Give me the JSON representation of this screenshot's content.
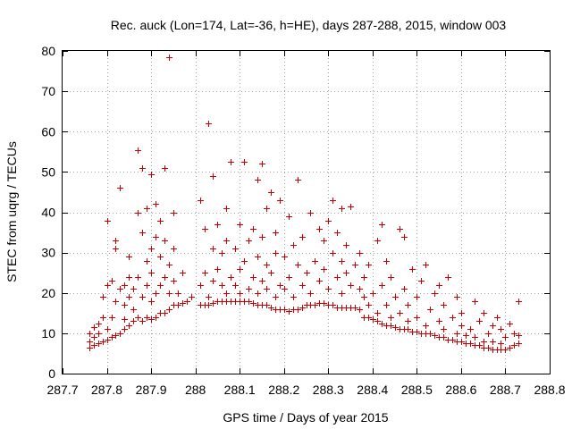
{
  "chart_data": {
    "type": "scatter",
    "title": "Rec. auck (Lon=174, Lat=-36, h=HE), days 287-288, 2015, window 003",
    "xlabel": "GPS time / Days of year 2015",
    "ylabel": "STEC from uqrg / TECUs",
    "xlim": [
      287.7,
      288.8
    ],
    "ylim": [
      0,
      80
    ],
    "x_ticks": [
      "287.7",
      "287.8",
      "287.9",
      "288",
      "288.1",
      "288.2",
      "288.3",
      "288.4",
      "288.5",
      "288.6",
      "288.7",
      "288.8"
    ],
    "y_ticks": [
      "0",
      "10",
      "20",
      "30",
      "40",
      "50",
      "60",
      "70",
      "80"
    ],
    "grid": true,
    "marker": "+",
    "colors": {
      "points": "#cc0000",
      "grid": "#a0a0a0",
      "axes": "#000000"
    },
    "series": [
      {
        "name": "STEC",
        "points": [
          [
            287.76,
            6.5
          ],
          [
            287.76,
            8
          ],
          [
            287.76,
            10
          ],
          [
            287.77,
            7
          ],
          [
            287.77,
            9
          ],
          [
            287.77,
            11.5
          ],
          [
            287.78,
            7.5
          ],
          [
            287.78,
            10
          ],
          [
            287.78,
            12.5
          ],
          [
            287.79,
            8
          ],
          [
            287.79,
            14
          ],
          [
            287.79,
            19
          ],
          [
            287.8,
            8.5
          ],
          [
            287.8,
            11
          ],
          [
            287.8,
            22
          ],
          [
            287.8,
            38
          ],
          [
            287.81,
            9
          ],
          [
            287.81,
            14
          ],
          [
            287.81,
            23
          ],
          [
            287.82,
            9.5
          ],
          [
            287.82,
            18
          ],
          [
            287.82,
            31
          ],
          [
            287.82,
            33
          ],
          [
            287.83,
            10
          ],
          [
            287.83,
            21
          ],
          [
            287.83,
            46
          ],
          [
            287.84,
            11
          ],
          [
            287.84,
            13.5
          ],
          [
            287.84,
            17
          ],
          [
            287.84,
            22
          ],
          [
            287.85,
            12
          ],
          [
            287.85,
            19
          ],
          [
            287.85,
            24
          ],
          [
            287.85,
            29
          ],
          [
            287.86,
            13
          ],
          [
            287.86,
            16
          ],
          [
            287.86,
            21
          ],
          [
            287.87,
            14
          ],
          [
            287.87,
            24
          ],
          [
            287.87,
            40
          ],
          [
            287.87,
            55.5
          ],
          [
            287.88,
            13
          ],
          [
            287.88,
            19
          ],
          [
            287.88,
            35
          ],
          [
            287.88,
            51
          ],
          [
            287.89,
            14
          ],
          [
            287.89,
            22
          ],
          [
            287.89,
            28
          ],
          [
            287.89,
            41
          ],
          [
            287.9,
            13.5
          ],
          [
            287.9,
            18
          ],
          [
            287.9,
            25
          ],
          [
            287.9,
            31
          ],
          [
            287.9,
            49.5
          ],
          [
            287.91,
            14
          ],
          [
            287.91,
            20
          ],
          [
            287.91,
            34
          ],
          [
            287.91,
            42
          ],
          [
            287.92,
            15
          ],
          [
            287.92,
            22
          ],
          [
            287.92,
            29
          ],
          [
            287.92,
            38
          ],
          [
            287.93,
            15
          ],
          [
            287.93,
            24
          ],
          [
            287.93,
            33
          ],
          [
            287.93,
            51
          ],
          [
            287.94,
            16
          ],
          [
            287.94,
            20
          ],
          [
            287.94,
            27
          ],
          [
            287.94,
            78.5
          ],
          [
            287.95,
            17
          ],
          [
            287.95,
            23
          ],
          [
            287.95,
            31
          ],
          [
            287.95,
            40
          ],
          [
            287.96,
            17
          ],
          [
            287.96,
            20
          ],
          [
            287.97,
            17.5
          ],
          [
            287.97,
            25
          ],
          [
            287.98,
            18
          ],
          [
            287.99,
            19
          ],
          [
            288.01,
            17
          ],
          [
            288.01,
            22
          ],
          [
            288.01,
            43
          ],
          [
            288.02,
            17
          ],
          [
            288.02,
            25
          ],
          [
            288.02,
            36
          ],
          [
            288.03,
            17
          ],
          [
            288.03,
            19
          ],
          [
            288.03,
            62
          ],
          [
            288.04,
            17.5
          ],
          [
            288.04,
            23
          ],
          [
            288.04,
            31
          ],
          [
            288.04,
            49
          ],
          [
            288.05,
            18
          ],
          [
            288.05,
            26
          ],
          [
            288.05,
            37
          ],
          [
            288.06,
            18
          ],
          [
            288.06,
            22
          ],
          [
            288.06,
            30
          ],
          [
            288.07,
            18
          ],
          [
            288.07,
            20
          ],
          [
            288.07,
            33
          ],
          [
            288.07,
            41
          ],
          [
            288.08,
            18
          ],
          [
            288.08,
            24
          ],
          [
            288.08,
            52.5
          ],
          [
            288.09,
            18
          ],
          [
            288.09,
            22
          ],
          [
            288.09,
            31
          ],
          [
            288.1,
            18
          ],
          [
            288.1,
            20
          ],
          [
            288.1,
            26
          ],
          [
            288.1,
            37
          ],
          [
            288.11,
            18
          ],
          [
            288.11,
            28
          ],
          [
            288.11,
            52.5
          ],
          [
            288.12,
            18
          ],
          [
            288.12,
            21
          ],
          [
            288.12,
            33
          ],
          [
            288.13,
            17.5
          ],
          [
            288.13,
            24
          ],
          [
            288.13,
            36
          ],
          [
            288.14,
            17
          ],
          [
            288.14,
            20
          ],
          [
            288.14,
            29
          ],
          [
            288.14,
            48
          ],
          [
            288.15,
            17
          ],
          [
            288.15,
            23
          ],
          [
            288.15,
            34
          ],
          [
            288.15,
            52
          ],
          [
            288.16,
            17
          ],
          [
            288.16,
            21
          ],
          [
            288.16,
            27
          ],
          [
            288.16,
            41
          ],
          [
            288.17,
            16.5
          ],
          [
            288.17,
            25
          ],
          [
            288.17,
            45
          ],
          [
            288.18,
            16
          ],
          [
            288.18,
            19
          ],
          [
            288.18,
            30
          ],
          [
            288.18,
            35
          ],
          [
            288.19,
            16
          ],
          [
            288.19,
            22
          ],
          [
            288.19,
            43
          ],
          [
            288.2,
            16
          ],
          [
            288.2,
            21
          ],
          [
            288.2,
            29
          ],
          [
            288.21,
            15.5
          ],
          [
            288.21,
            24
          ],
          [
            288.21,
            39
          ],
          [
            288.22,
            16
          ],
          [
            288.22,
            19
          ],
          [
            288.22,
            32
          ],
          [
            288.23,
            16
          ],
          [
            288.23,
            27
          ],
          [
            288.23,
            48
          ],
          [
            288.24,
            16.5
          ],
          [
            288.24,
            22
          ],
          [
            288.24,
            34
          ],
          [
            288.25,
            17
          ],
          [
            288.25,
            25
          ],
          [
            288.26,
            17
          ],
          [
            288.26,
            20
          ],
          [
            288.26,
            40
          ],
          [
            288.27,
            17
          ],
          [
            288.27,
            28
          ],
          [
            288.28,
            17.5
          ],
          [
            288.28,
            23
          ],
          [
            288.28,
            36
          ],
          [
            288.29,
            17.5
          ],
          [
            288.29,
            26
          ],
          [
            288.29,
            33
          ],
          [
            288.3,
            17
          ],
          [
            288.3,
            21
          ],
          [
            288.3,
            38
          ],
          [
            288.31,
            17
          ],
          [
            288.31,
            30
          ],
          [
            288.31,
            43
          ],
          [
            288.32,
            16.5
          ],
          [
            288.32,
            24
          ],
          [
            288.32,
            35
          ],
          [
            288.33,
            16.5
          ],
          [
            288.33,
            20
          ],
          [
            288.33,
            28
          ],
          [
            288.33,
            41
          ],
          [
            288.34,
            16.5
          ],
          [
            288.34,
            25
          ],
          [
            288.34,
            32
          ],
          [
            288.35,
            16.5
          ],
          [
            288.35,
            22
          ],
          [
            288.35,
            41.5
          ],
          [
            288.36,
            16.5
          ],
          [
            288.36,
            27
          ],
          [
            288.37,
            16
          ],
          [
            288.37,
            21
          ],
          [
            288.37,
            30
          ],
          [
            288.38,
            14
          ],
          [
            288.38,
            19
          ],
          [
            288.38,
            24
          ],
          [
            288.39,
            14
          ],
          [
            288.39,
            17
          ],
          [
            288.39,
            27
          ],
          [
            288.4,
            13.5
          ],
          [
            288.4,
            20
          ],
          [
            288.41,
            13
          ],
          [
            288.41,
            15
          ],
          [
            288.41,
            33
          ],
          [
            288.42,
            12.5
          ],
          [
            288.42,
            22
          ],
          [
            288.42,
            37
          ],
          [
            288.43,
            12
          ],
          [
            288.43,
            17
          ],
          [
            288.43,
            28
          ],
          [
            288.44,
            12
          ],
          [
            288.44,
            14
          ],
          [
            288.44,
            24
          ],
          [
            288.45,
            11.5
          ],
          [
            288.45,
            19
          ],
          [
            288.46,
            11
          ],
          [
            288.46,
            15
          ],
          [
            288.46,
            36
          ],
          [
            288.47,
            11
          ],
          [
            288.47,
            21
          ],
          [
            288.47,
            34
          ],
          [
            288.48,
            11
          ],
          [
            288.48,
            13
          ],
          [
            288.48,
            17
          ],
          [
            288.49,
            10.5
          ],
          [
            288.49,
            26
          ],
          [
            288.5,
            10.5
          ],
          [
            288.5,
            14
          ],
          [
            288.5,
            19
          ],
          [
            288.51,
            10
          ],
          [
            288.51,
            23
          ],
          [
            288.52,
            10
          ],
          [
            288.52,
            12
          ],
          [
            288.52,
            27
          ],
          [
            288.53,
            10
          ],
          [
            288.53,
            16
          ],
          [
            288.54,
            9.5
          ],
          [
            288.54,
            20
          ],
          [
            288.55,
            9
          ],
          [
            288.55,
            13
          ],
          [
            288.55,
            22
          ],
          [
            288.56,
            9
          ],
          [
            288.56,
            11
          ],
          [
            288.56,
            17
          ],
          [
            288.57,
            8.5
          ],
          [
            288.57,
            24
          ],
          [
            288.58,
            8.5
          ],
          [
            288.58,
            14
          ],
          [
            288.59,
            8
          ],
          [
            288.59,
            10
          ],
          [
            288.59,
            19
          ],
          [
            288.6,
            8
          ],
          [
            288.6,
            12
          ],
          [
            288.6,
            15
          ],
          [
            288.61,
            7.5
          ],
          [
            288.61,
            9.5
          ],
          [
            288.62,
            7.5
          ],
          [
            288.62,
            11
          ],
          [
            288.63,
            7
          ],
          [
            288.63,
            9
          ],
          [
            288.63,
            18
          ],
          [
            288.64,
            7
          ],
          [
            288.64,
            13
          ],
          [
            288.65,
            6.5
          ],
          [
            288.65,
            8
          ],
          [
            288.65,
            15
          ],
          [
            288.66,
            6.5
          ],
          [
            288.66,
            10
          ],
          [
            288.67,
            6
          ],
          [
            288.67,
            8
          ],
          [
            288.67,
            12
          ],
          [
            288.68,
            6
          ],
          [
            288.68,
            14
          ],
          [
            288.69,
            6
          ],
          [
            288.69,
            7.5
          ],
          [
            288.69,
            11
          ],
          [
            288.7,
            6
          ],
          [
            288.7,
            9
          ],
          [
            288.71,
            6.5
          ],
          [
            288.71,
            12.5
          ],
          [
            288.72,
            7
          ],
          [
            288.72,
            10
          ],
          [
            288.73,
            7.5
          ],
          [
            288.73,
            9.5
          ],
          [
            288.73,
            18
          ]
        ]
      }
    ]
  }
}
